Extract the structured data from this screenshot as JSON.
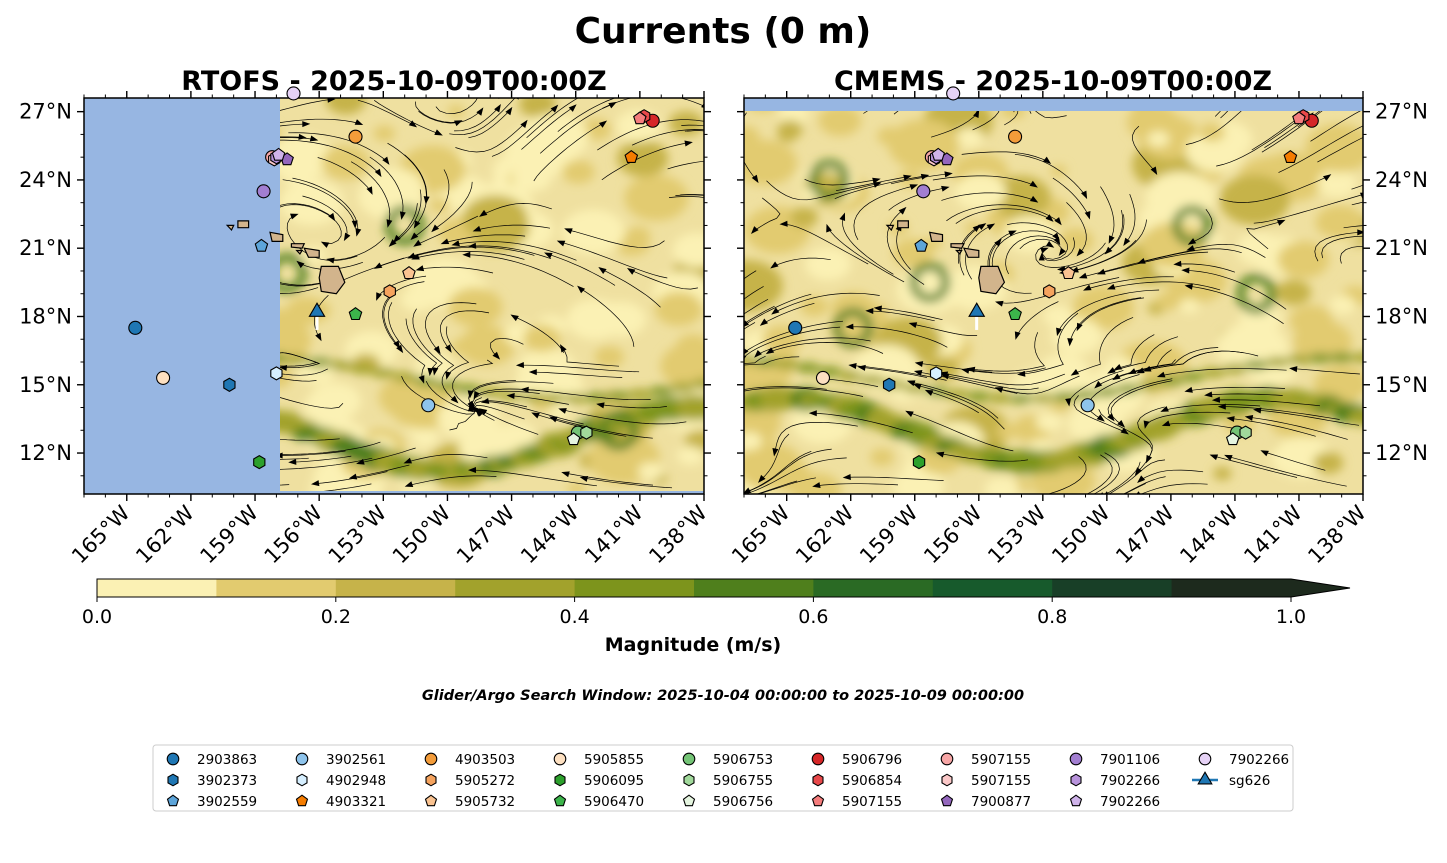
{
  "chart_data": {
    "type": "map",
    "title": "Currents (0 m)",
    "panels": [
      {
        "title": "RTOFS - 2025-10-09T00:00Z",
        "model": "RTOFS",
        "land_mask_west_of_lon": -157.0
      },
      {
        "title": "CMEMS - 2025-10-09T00:00Z",
        "model": "CMEMS"
      }
    ],
    "lon_range": [
      -167,
      -138
    ],
    "lat_range": [
      10.2,
      27.6
    ],
    "lon_ticks": [
      -165,
      -162,
      -159,
      -156,
      -153,
      -150,
      -147,
      -144,
      -141,
      -138
    ],
    "lon_tick_labels": [
      "165°W",
      "162°W",
      "159°W",
      "156°W",
      "153°W",
      "150°W",
      "147°W",
      "144°W",
      "141°W",
      "138°W"
    ],
    "lat_ticks": [
      12,
      15,
      18,
      21,
      24,
      27
    ],
    "lat_tick_labels": [
      "12°N",
      "15°N",
      "18°N",
      "21°N",
      "24°N",
      "27°N"
    ],
    "colorbar": {
      "label": "Magnitude (m/s)",
      "min": 0.0,
      "max": 1.0,
      "extend": "max",
      "ticks": [
        0.0,
        0.2,
        0.4,
        0.6,
        0.8,
        1.0
      ],
      "tick_labels": [
        "0.0",
        "0.2",
        "0.4",
        "0.6",
        "0.8",
        "1.0"
      ],
      "colors": [
        "#fbf1b4",
        "#e2cb6f",
        "#c6b34a",
        "#a2a22c",
        "#7d941c",
        "#4f7f1c",
        "#2a6a24",
        "#175a2c",
        "#183f27",
        "#1d2a1d"
      ]
    },
    "search_window": "Glider/Argo Search Window: 2025-10-04 00:00:00 to 2025-10-09 00:00:00",
    "floats": [
      {
        "id": "2903863",
        "marker": "circle",
        "color": "#1f77b4",
        "lon": -164.6,
        "lat": 17.5
      },
      {
        "id": "3902373",
        "marker": "hexagon",
        "color": "#1f77b4",
        "lon": -160.2,
        "lat": 15.0
      },
      {
        "id": "3902559",
        "marker": "pentagon",
        "color": "#5da5da",
        "lon": -158.7,
        "lat": 21.1
      },
      {
        "id": "3902561",
        "marker": "circle",
        "color": "#8ec4ec",
        "lon": -150.9,
        "lat": 14.1
      },
      {
        "id": "4902948",
        "marker": "hexagon",
        "color": "#d6efff",
        "lon": -158.0,
        "lat": 15.5
      },
      {
        "id": "4903321",
        "marker": "pentagon",
        "color": "#f57c00",
        "lon": -141.4,
        "lat": 25.0
      },
      {
        "id": "4903503",
        "marker": "circle",
        "color": "#f39c3a",
        "lon": -154.3,
        "lat": 25.9
      },
      {
        "id": "5905272",
        "marker": "hexagon",
        "color": "#f5a35e",
        "lon": -152.7,
        "lat": 19.1
      },
      {
        "id": "5905732",
        "marker": "pentagon",
        "color": "#fac391",
        "lon": -151.8,
        "lat": 19.9
      },
      {
        "id": "5905855",
        "marker": "circle",
        "color": "#fde0c1",
        "lon": -163.3,
        "lat": 15.3
      },
      {
        "id": "5906095",
        "marker": "hexagon",
        "color": "#2ca02c",
        "lon": -158.8,
        "lat": 11.6
      },
      {
        "id": "5906470",
        "marker": "pentagon",
        "color": "#3cb44b",
        "lon": -154.3,
        "lat": 18.1
      },
      {
        "id": "5906753",
        "marker": "circle",
        "color": "#74c476",
        "lon": -143.9,
        "lat": 12.9
      },
      {
        "id": "5906755",
        "marker": "hexagon",
        "color": "#a1d99b",
        "lon": -143.5,
        "lat": 12.9
      },
      {
        "id": "5906756",
        "marker": "pentagon",
        "color": "#e5f5e0",
        "lon": -144.1,
        "lat": 12.6
      },
      {
        "id": "5906796",
        "marker": "circle",
        "color": "#d62728",
        "lon": -140.4,
        "lat": 26.6
      },
      {
        "id": "5906854",
        "marker": "hexagon",
        "color": "#e8484a",
        "lon": -140.8,
        "lat": 26.8
      },
      {
        "id": "5907155",
        "marker": "pentagon",
        "color": "#f47c7c",
        "lon": -141.0,
        "lat": 26.7
      },
      {
        "id": "5907155",
        "marker": "circle",
        "color": "#f7a6a6",
        "lon": -158.2,
        "lat": 25.0
      },
      {
        "id": "5907155",
        "marker": "hexagon",
        "color": "#fbc8c8",
        "lon": -158.1,
        "lat": 24.9
      },
      {
        "id": "7900877",
        "marker": "pentagon",
        "color": "#9467bd",
        "lon": -157.5,
        "lat": 24.9
      },
      {
        "id": "7901106",
        "marker": "circle",
        "color": "#a27ed1",
        "lon": -158.6,
        "lat": 23.5
      },
      {
        "id": "7902266",
        "marker": "hexagon",
        "color": "#b893dc",
        "lon": -158.0,
        "lat": 25.0
      },
      {
        "id": "7902266",
        "marker": "pentagon",
        "color": "#cfb3ea",
        "lon": -157.9,
        "lat": 25.1
      },
      {
        "id": "7902266",
        "marker": "circle",
        "color": "#e6d2f6",
        "lon": -157.2,
        "lat": 27.8
      },
      {
        "id": "sg626",
        "marker": "triangle",
        "color": "#1f77b4",
        "lon": -156.1,
        "lat": 18.2
      }
    ],
    "legend": {
      "columns": [
        [
          "2903863",
          "3902373",
          "3902559"
        ],
        [
          "3902561",
          "4902948",
          "4903321"
        ],
        [
          "4903503",
          "5905272",
          "5905732"
        ],
        [
          "5905855",
          "5906095",
          "5906470"
        ],
        [
          "5906753",
          "5906755",
          "5906756"
        ],
        [
          "5906796",
          "5906854",
          "5907155"
        ],
        [
          "5907155",
          "5907155",
          "7900877"
        ],
        [
          "7901106",
          "7902266",
          "7902266"
        ],
        [
          "7902266",
          "sg626"
        ]
      ]
    }
  },
  "colors": {
    "land": "#d2b48c",
    "ocean_mask": "#97b6e2",
    "streamline": "#000000"
  }
}
